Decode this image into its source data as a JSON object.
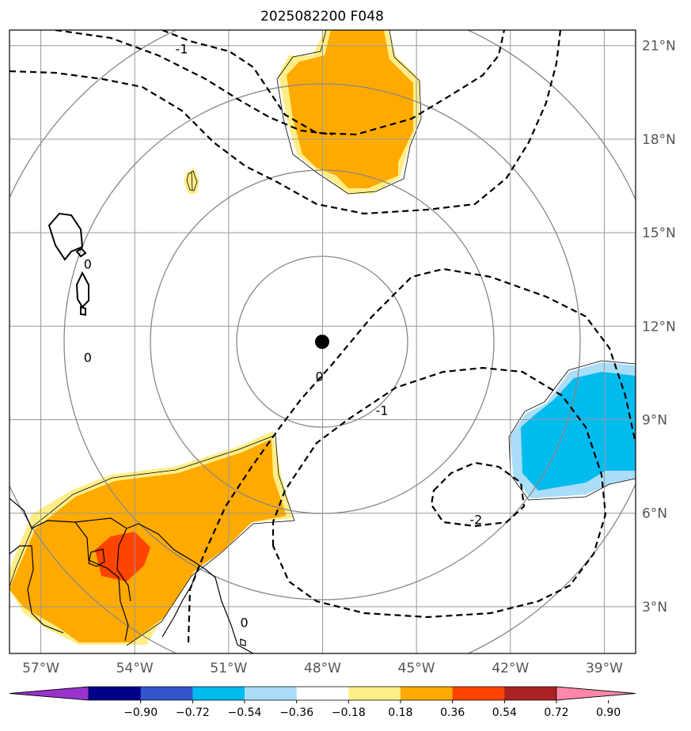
{
  "title": "2025082200 F048",
  "map": {
    "lon_range": [
      -58,
      -38
    ],
    "lat_range": [
      1.5,
      21.5
    ],
    "grid": true,
    "lon_ticks": [
      {
        "value": -57,
        "label": "57°W"
      },
      {
        "value": -54,
        "label": "54°W"
      },
      {
        "value": -51,
        "label": "51°W"
      },
      {
        "value": -48,
        "label": "48°W"
      },
      {
        "value": -45,
        "label": "45°W"
      },
      {
        "value": -42,
        "label": "42°W"
      },
      {
        "value": -39,
        "label": "39°W"
      }
    ],
    "lat_ticks": [
      {
        "value": 3,
        "label": "3°N"
      },
      {
        "value": 6,
        "label": "6°N"
      },
      {
        "value": 9,
        "label": "9°N"
      },
      {
        "value": 12,
        "label": "12°N"
      },
      {
        "value": 15,
        "label": "15°N"
      },
      {
        "value": 18,
        "label": "18°N"
      },
      {
        "value": 21,
        "label": "21°N"
      }
    ],
    "center_marker": {
      "lon": -47.9,
      "lat": 11.6
    },
    "range_rings_count": 4,
    "contour_labels": [
      {
        "text": "-1",
        "lon": -52.5,
        "lat": 20.9
      },
      {
        "text": "0",
        "lon": -48.1,
        "lat": 10.4
      },
      {
        "text": "-1",
        "lon": -46.1,
        "lat": 9.3
      },
      {
        "text": "-2",
        "lon": -43.1,
        "lat": 5.8
      },
      {
        "text": "0",
        "lon": -55.5,
        "lat": 14.0
      },
      {
        "text": "0",
        "lon": -55.5,
        "lat": 11.0
      },
      {
        "text": "0",
        "lon": -50.5,
        "lat": 2.5
      }
    ]
  },
  "colorbar": {
    "colors": [
      "#9933cc",
      "#000088",
      "#3355cc",
      "#00bbee",
      "#aaddf7",
      "#ffffff",
      "#ffee88",
      "#ffaa00",
      "#ff4400",
      "#aa2222",
      "#ff88aa"
    ],
    "tick_labels": [
      "−0.90",
      "−0.72",
      "−0.54",
      "−0.36",
      "−0.18",
      "0.18",
      "0.36",
      "0.54",
      "0.72",
      "0.90"
    ]
  }
}
